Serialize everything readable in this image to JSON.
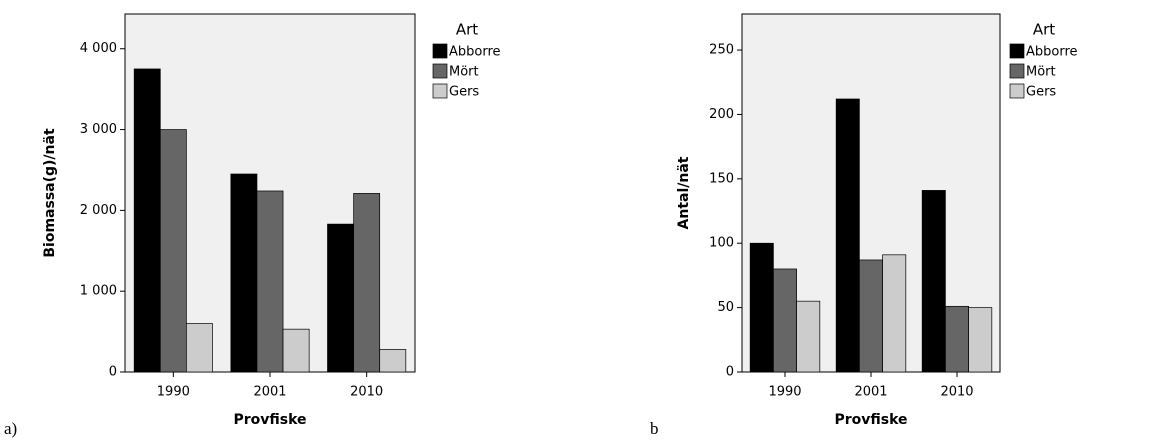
{
  "chart_data": [
    {
      "type": "bar",
      "panel_label": "a)",
      "ylabel": "Biomassa(g)/nät",
      "xlabel": "Provfiske",
      "categories": [
        "1990",
        "2001",
        "2010"
      ],
      "legend_title": "Art",
      "series": [
        {
          "name": "Abborre",
          "color": "#000000",
          "values": [
            3750,
            2450,
            1830
          ]
        },
        {
          "name": "Mört",
          "color": "#666666",
          "values": [
            3000,
            2240,
            2210
          ]
        },
        {
          "name": "Gers",
          "color": "#cccccc",
          "values": [
            600,
            530,
            280
          ]
        }
      ],
      "ylim": [
        0,
        4430
      ],
      "yticks": [
        0,
        {
          "value": 1000,
          "label": "1 000"
        },
        {
          "value": 2000,
          "label": "2 000"
        },
        {
          "value": 3000,
          "label": "3 000"
        },
        {
          "value": 4000,
          "label": "4 000"
        }
      ]
    },
    {
      "type": "bar",
      "panel_label": "b",
      "ylabel": "Antal/nät",
      "xlabel": "Provfiske",
      "categories": [
        "1990",
        "2001",
        "2010"
      ],
      "legend_title": "Art",
      "series": [
        {
          "name": "Abborre",
          "color": "#000000",
          "values": [
            100,
            212,
            141
          ]
        },
        {
          "name": "Mört",
          "color": "#666666",
          "values": [
            80,
            87,
            51
          ]
        },
        {
          "name": "Gers",
          "color": "#cccccc",
          "values": [
            55,
            91,
            50
          ]
        }
      ],
      "ylim": [
        0,
        278
      ],
      "yticks": [
        0,
        50,
        100,
        150,
        200,
        250
      ]
    }
  ]
}
